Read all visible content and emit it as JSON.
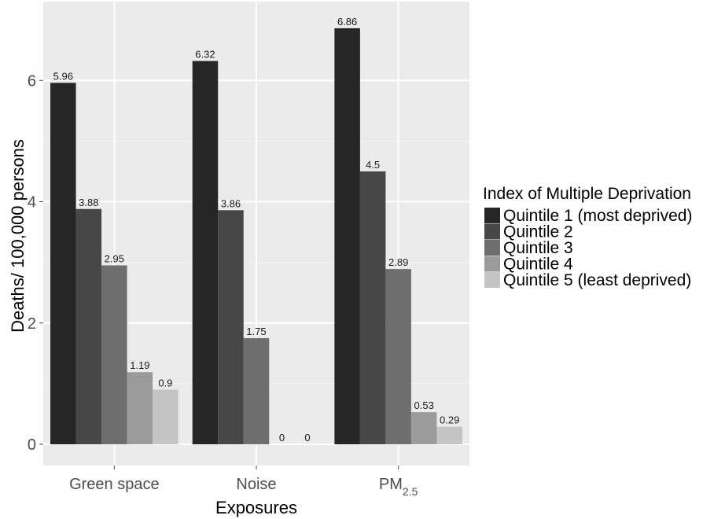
{
  "chart_data": {
    "type": "bar",
    "xlabel": "Exposures",
    "ylabel": "Deaths/ 100,000 persons",
    "ylim": [
      -0.35,
      7.3
    ],
    "yticks": [
      0,
      2,
      4,
      6
    ],
    "grid": true,
    "legend": {
      "title": "Index of Multiple Deprivation",
      "placement": "right"
    },
    "categories": [
      {
        "label": "Green space",
        "sub": ""
      },
      {
        "label": "Noise",
        "sub": ""
      },
      {
        "label": "PM",
        "sub": "2.5"
      }
    ],
    "series": [
      {
        "name": "Quintile 1 (most deprived)",
        "color": "#262626",
        "values": [
          5.96,
          6.32,
          6.86
        ],
        "labels": [
          "5.96",
          "6.32",
          "6.86"
        ]
      },
      {
        "name": "Quintile 2",
        "color": "#474747",
        "values": [
          3.88,
          3.86,
          4.5
        ],
        "labels": [
          "3.88",
          "3.86",
          "4.5"
        ]
      },
      {
        "name": "Quintile 3",
        "color": "#6e6e6e",
        "values": [
          2.95,
          1.75,
          2.89
        ],
        "labels": [
          "2.95",
          "1.75",
          "2.89"
        ]
      },
      {
        "name": "Quintile 4",
        "color": "#9b9b9b",
        "values": [
          1.19,
          0,
          0.53
        ],
        "labels": [
          "1.19",
          "0",
          "0.53"
        ]
      },
      {
        "name": "Quintile 5 (least deprived)",
        "color": "#c4c4c4",
        "values": [
          0.9,
          0,
          0.29
        ],
        "labels": [
          "0.9",
          "0",
          "0.29"
        ]
      }
    ]
  }
}
